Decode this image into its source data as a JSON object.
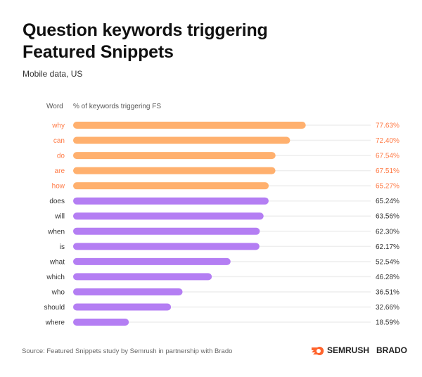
{
  "title_line1": "Question keywords triggering",
  "title_line2": "Featured Snippets",
  "subtitle": "Mobile data, US",
  "source": "Source: Featured Snippets study by Semrush in partnership with Brado",
  "logos": {
    "semrush": "SEMRUSH",
    "brado": "BRADO"
  },
  "colors": {
    "highlight_bar": "#FFB06E",
    "highlight_text": "#FF7A45",
    "bar": "#B47EF3",
    "track": "#EEEEEE",
    "text": "#333333"
  },
  "chart_data": {
    "type": "bar",
    "orientation": "horizontal",
    "category_header": "Word",
    "value_header": "% of keywords triggering FS",
    "categories": [
      "why",
      "can",
      "do",
      "are",
      "how",
      "does",
      "will",
      "when",
      "is",
      "what",
      "which",
      "who",
      "should",
      "where"
    ],
    "values": [
      77.63,
      72.4,
      67.54,
      67.51,
      65.27,
      65.24,
      63.56,
      62.3,
      62.17,
      52.54,
      46.28,
      36.51,
      32.66,
      18.59
    ],
    "labels": [
      "77.63%",
      "72.40%",
      "67.54%",
      "67.51%",
      "65.27%",
      "65.24%",
      "63.56%",
      "62.30%",
      "62.17%",
      "52.54%",
      "46.28%",
      "36.51%",
      "32.66%",
      "18.59%"
    ],
    "highlighted": [
      "why",
      "can",
      "do",
      "are",
      "how"
    ],
    "xlim": [
      0,
      100
    ],
    "grid": false,
    "legend": "none"
  }
}
